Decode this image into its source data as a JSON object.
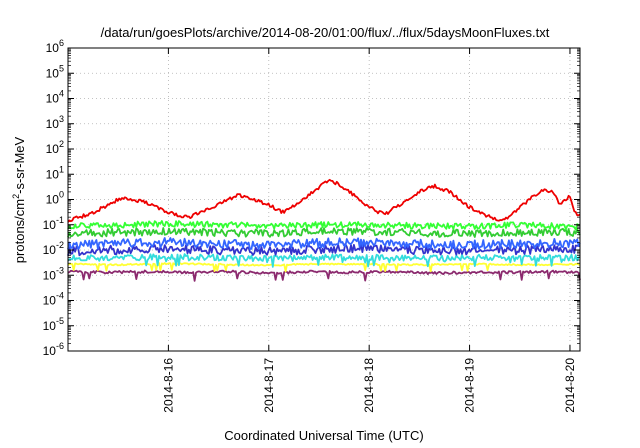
{
  "chart_data": {
    "type": "line",
    "title": "/data/run/goesPlots/archive/2014-08-20/01:00/flux/../flux/5daysMoonFluxes.txt",
    "xlabel": "Coordinated Universal Time (UTC)",
    "ylabel_parts": {
      "pre": "protons/cm",
      "sup": "2",
      "post": "-s-sr-MeV"
    },
    "yscale": "log",
    "ylim": [
      1e-06,
      1000000
    ],
    "y_ticks": [
      {
        "base": "10",
        "exp": "-6",
        "value": 1e-06
      },
      {
        "base": "10",
        "exp": "-5",
        "value": 1e-05
      },
      {
        "base": "10",
        "exp": "-4",
        "value": 0.0001
      },
      {
        "base": "10",
        "exp": "-3",
        "value": 0.001
      },
      {
        "base": "10",
        "exp": "-2",
        "value": 0.01
      },
      {
        "base": "10",
        "exp": "-1",
        "value": 0.1
      },
      {
        "base": "10",
        "exp": "0",
        "value": 1
      },
      {
        "base": "10",
        "exp": "1",
        "value": 10
      },
      {
        "base": "10",
        "exp": "2",
        "value": 100
      },
      {
        "base": "10",
        "exp": "3",
        "value": 1000
      },
      {
        "base": "10",
        "exp": "4",
        "value": 10000
      },
      {
        "base": "10",
        "exp": "5",
        "value": 100000
      },
      {
        "base": "10",
        "exp": "6",
        "value": 1000000
      }
    ],
    "xlim_days": [
      15.0,
      20.1
    ],
    "x_ticks": [
      {
        "label": "2014-8-16",
        "day": 16
      },
      {
        "label": "2014-8-17",
        "day": 17
      },
      {
        "label": "2014-8-18",
        "day": 18
      },
      {
        "label": "2014-8-19",
        "day": 19
      },
      {
        "label": "2014-8-20",
        "day": 20
      }
    ],
    "grid": true,
    "series": [
      {
        "color": "#8b2a6e",
        "points": [
          [
            15.0,
            0.0014
          ],
          [
            15.4,
            0.0013
          ],
          [
            15.8,
            0.0014
          ],
          [
            16.2,
            0.0013
          ],
          [
            16.6,
            0.0014
          ],
          [
            17.0,
            0.0012
          ],
          [
            17.4,
            0.0014
          ],
          [
            17.8,
            0.0013
          ],
          [
            18.2,
            0.0014
          ],
          [
            18.6,
            0.0012
          ],
          [
            19.0,
            0.0013
          ],
          [
            19.4,
            0.0013
          ],
          [
            19.8,
            0.0014
          ],
          [
            20.1,
            0.0013
          ]
        ]
      },
      {
        "color": "#ffff33",
        "points": [
          [
            15.0,
            0.0028
          ],
          [
            15.5,
            0.0026
          ],
          [
            16.0,
            0.0029
          ],
          [
            16.5,
            0.0027
          ],
          [
            17.0,
            0.0025
          ],
          [
            17.5,
            0.0028
          ],
          [
            18.0,
            0.0027
          ],
          [
            18.5,
            0.0026
          ],
          [
            19.0,
            0.0028
          ],
          [
            19.5,
            0.0026
          ],
          [
            20.1,
            0.0027
          ]
        ]
      },
      {
        "color": "#33dddd",
        "points": [
          [
            15.0,
            0.005
          ],
          [
            15.5,
            0.0048
          ],
          [
            16.0,
            0.0055
          ],
          [
            16.5,
            0.005
          ],
          [
            17.0,
            0.0045
          ],
          [
            17.5,
            0.005
          ],
          [
            18.0,
            0.0052
          ],
          [
            18.5,
            0.0047
          ],
          [
            19.0,
            0.005
          ],
          [
            19.5,
            0.0048
          ],
          [
            20.1,
            0.005
          ]
        ]
      },
      {
        "color": "#3333cc",
        "points": [
          [
            15.0,
            0.009
          ],
          [
            15.5,
            0.01
          ],
          [
            16.0,
            0.011
          ],
          [
            16.5,
            0.01
          ],
          [
            17.0,
            0.009
          ],
          [
            17.5,
            0.011
          ],
          [
            18.0,
            0.012
          ],
          [
            18.5,
            0.01
          ],
          [
            19.0,
            0.009
          ],
          [
            19.5,
            0.01
          ],
          [
            20.1,
            0.011
          ]
        ]
      },
      {
        "color": "#3366ff",
        "points": [
          [
            15.0,
            0.016
          ],
          [
            15.5,
            0.018
          ],
          [
            16.0,
            0.02
          ],
          [
            16.5,
            0.018
          ],
          [
            17.0,
            0.015
          ],
          [
            17.5,
            0.019
          ],
          [
            18.0,
            0.02
          ],
          [
            18.5,
            0.017
          ],
          [
            19.0,
            0.016
          ],
          [
            19.5,
            0.018
          ],
          [
            20.1,
            0.019
          ]
        ]
      },
      {
        "color": "#33cc33",
        "points": [
          [
            15.0,
            0.045
          ],
          [
            15.5,
            0.05
          ],
          [
            16.0,
            0.055
          ],
          [
            16.5,
            0.05
          ],
          [
            17.0,
            0.045
          ],
          [
            17.5,
            0.052
          ],
          [
            18.0,
            0.055
          ],
          [
            18.5,
            0.048
          ],
          [
            19.0,
            0.045
          ],
          [
            19.5,
            0.05
          ],
          [
            20.1,
            0.05
          ]
        ]
      },
      {
        "color": "#33ff33",
        "points": [
          [
            15.0,
            0.09
          ],
          [
            15.5,
            0.1
          ],
          [
            16.0,
            0.11
          ],
          [
            16.5,
            0.1
          ],
          [
            17.0,
            0.09
          ],
          [
            17.5,
            0.1
          ],
          [
            18.0,
            0.1
          ],
          [
            18.5,
            0.09
          ],
          [
            19.0,
            0.085
          ],
          [
            19.5,
            0.1
          ],
          [
            20.1,
            0.08
          ]
        ]
      },
      {
        "color": "#ee0000",
        "points": [
          [
            15.0,
            0.15
          ],
          [
            15.2,
            0.25
          ],
          [
            15.4,
            0.6
          ],
          [
            15.5,
            1.0
          ],
          [
            15.6,
            1.1
          ],
          [
            15.8,
            0.7
          ],
          [
            16.0,
            0.3
          ],
          [
            16.2,
            0.2
          ],
          [
            16.4,
            0.4
          ],
          [
            16.6,
            1.0
          ],
          [
            16.7,
            1.5
          ],
          [
            16.8,
            1.2
          ],
          [
            17.0,
            0.6
          ],
          [
            17.15,
            0.3
          ],
          [
            17.3,
            0.8
          ],
          [
            17.5,
            3.0
          ],
          [
            17.6,
            6.0
          ],
          [
            17.7,
            4.0
          ],
          [
            17.85,
            1.5
          ],
          [
            18.0,
            0.5
          ],
          [
            18.15,
            0.25
          ],
          [
            18.3,
            0.6
          ],
          [
            18.5,
            2.0
          ],
          [
            18.65,
            3.5
          ],
          [
            18.8,
            2.0
          ],
          [
            19.0,
            0.5
          ],
          [
            19.2,
            0.2
          ],
          [
            19.35,
            0.15
          ],
          [
            19.5,
            0.5
          ],
          [
            19.65,
            1.5
          ],
          [
            19.75,
            2.5
          ],
          [
            19.85,
            1.8
          ],
          [
            19.9,
            0.6
          ],
          [
            20.0,
            1.5
          ],
          [
            20.05,
            0.3
          ],
          [
            20.1,
            0.25
          ]
        ]
      }
    ]
  }
}
